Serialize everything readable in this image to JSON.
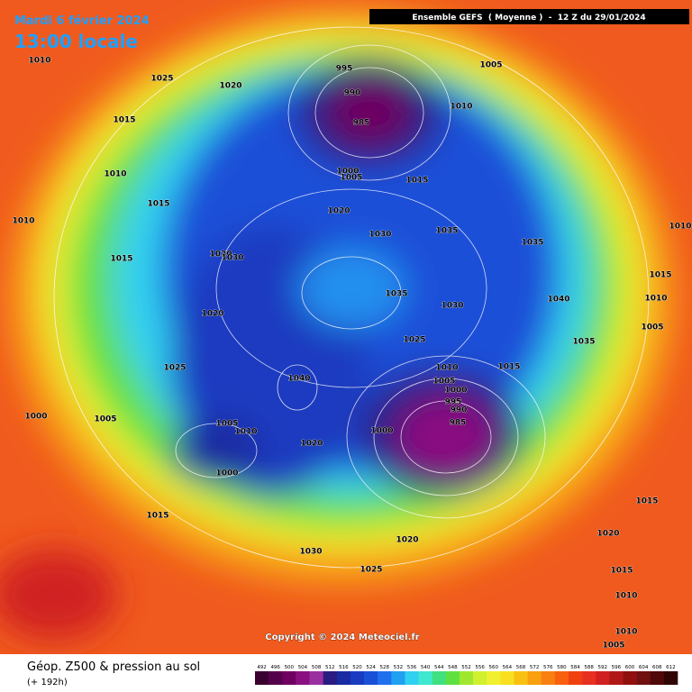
{
  "header": {
    "date": "Mardi 6 février 2024",
    "time": "13:00 locale",
    "model": "Ensemble GEFS  ( Moyenne )  -  12 Z du 29/01/2024"
  },
  "map": {
    "copyright": "Copyright © 2024 Meteociel.fr",
    "isobar_labels": [
      1010,
      1025,
      1020,
      1015,
      1010,
      1015,
      1010,
      1015,
      1020,
      1030,
      1020,
      1025,
      1000,
      1005,
      1005,
      1010,
      1000,
      1015,
      1020,
      1040,
      995,
      990,
      985,
      1000,
      1005,
      1015,
      1020,
      1005,
      1010,
      1030,
      1035,
      1035,
      1035,
      1030,
      1040,
      1025,
      1035,
      1010,
      1015,
      1005,
      1000,
      995,
      990,
      985,
      1000,
      1010,
      1015,
      1010,
      1005,
      1020,
      1030,
      1025,
      1015,
      1020,
      1015,
      1010,
      1010,
      1005
    ]
  },
  "footer": {
    "title": "Géop. Z500 & pression au sol",
    "lead": "(+ 192h)",
    "scale": [
      492,
      496,
      500,
      504,
      508,
      512,
      516,
      520,
      524,
      528,
      532,
      536,
      540,
      544,
      548,
      552,
      556,
      560,
      564,
      568,
      572,
      576,
      580,
      584,
      588,
      592,
      596,
      600,
      604,
      608,
      612
    ],
    "scale_colors": [
      "#3a0030",
      "#55004a",
      "#700060",
      "#8a1080",
      "#9a30a0",
      "#2a1c80",
      "#1a2aa0",
      "#1a3ac0",
      "#1a50d8",
      "#2070ee",
      "#20a0f0",
      "#30d0f0",
      "#40e8d0",
      "#40e080",
      "#60e040",
      "#a0e830",
      "#d0f030",
      "#f0f030",
      "#f8e020",
      "#f8c010",
      "#f8a010",
      "#f88010",
      "#f86010",
      "#f04010",
      "#e83020",
      "#d02020",
      "#b01818",
      "#901010",
      "#701010",
      "#500808",
      "#300404"
    ]
  }
}
